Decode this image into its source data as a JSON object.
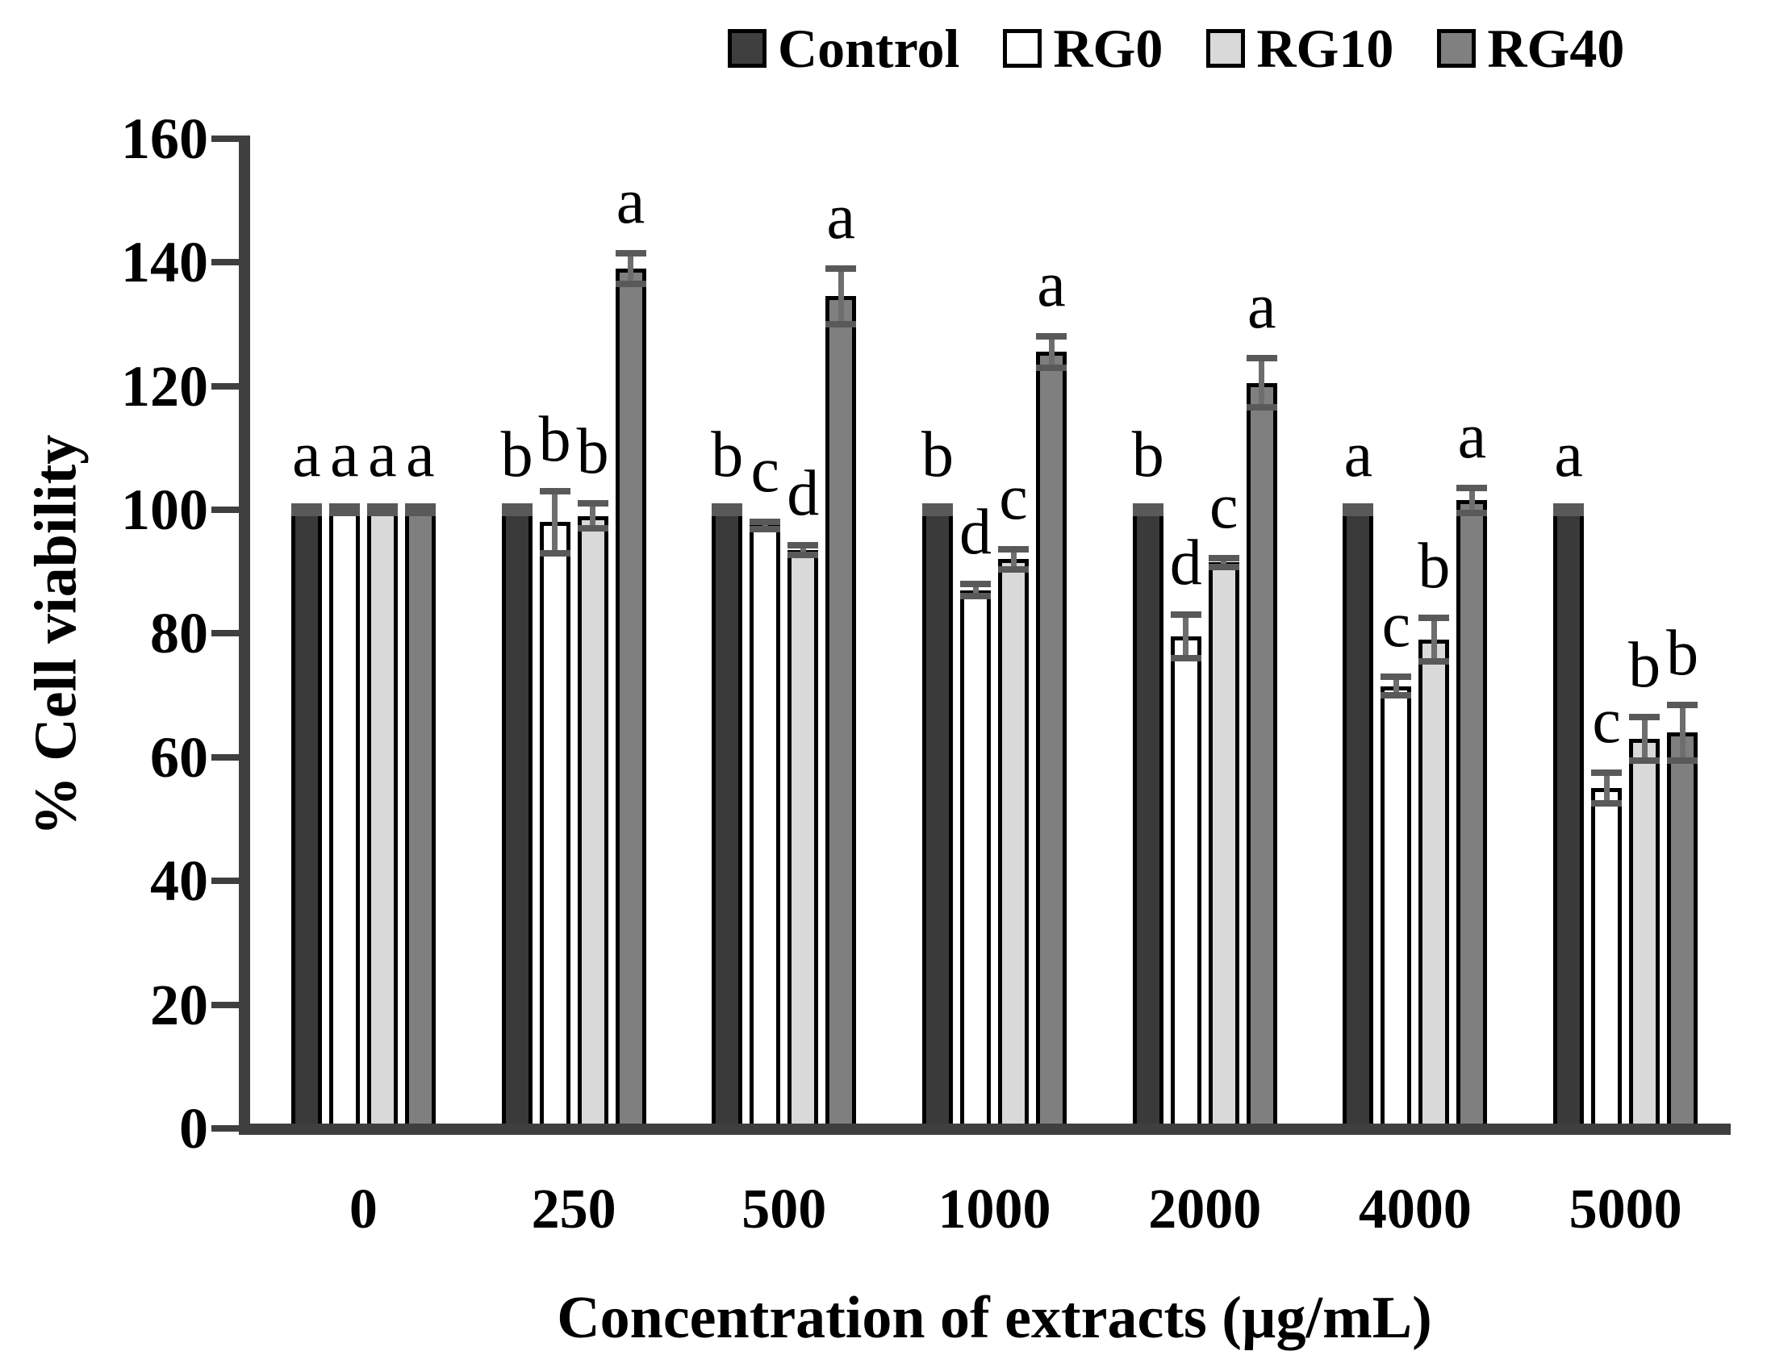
{
  "legend": {
    "items": [
      {
        "label": "Control",
        "color": "#3f3f3f"
      },
      {
        "label": "RG0",
        "color": "#ffffff"
      },
      {
        "label": "RG10",
        "color": "#d9d9d9"
      },
      {
        "label": "RG40",
        "color": "#808080"
      }
    ]
  },
  "chart_data": {
    "type": "bar",
    "title": "",
    "xlabel": "Concentration of extracts (µg/mL)",
    "ylabel": "% Cell viability",
    "ylim": [
      0,
      160
    ],
    "yticks": [
      0,
      20,
      40,
      60,
      80,
      100,
      120,
      140,
      160
    ],
    "grid": "off",
    "legend_position": "top",
    "categories": [
      "0",
      "250",
      "500",
      "1000",
      "2000",
      "4000",
      "5000"
    ],
    "series": [
      {
        "name": "Control",
        "color": "#3a3a3a",
        "values": [
          100,
          100,
          100,
          100,
          100,
          100,
          100
        ],
        "errors": [
          0.5,
          0.5,
          0.5,
          0.5,
          0.5,
          0.5,
          0.5
        ],
        "letters": [
          "a",
          "b",
          "b",
          "b",
          "b",
          "a",
          "a"
        ]
      },
      {
        "name": "RG0",
        "color": "#ffffff",
        "values": [
          100,
          98,
          97.5,
          87,
          79.5,
          71.5,
          55
        ],
        "errors": [
          0.5,
          5,
          0.6,
          1,
          3.5,
          1.5,
          2.5
        ],
        "letters": [
          "a",
          "b",
          "c",
          "d",
          "d",
          "c",
          "c"
        ]
      },
      {
        "name": "RG10",
        "color": "#d9d9d9",
        "values": [
          100,
          99,
          93.5,
          92,
          91.5,
          79,
          63
        ],
        "errors": [
          0.5,
          2,
          0.8,
          1.6,
          0.7,
          3.5,
          3.5
        ],
        "letters": [
          "a",
          "b",
          "d",
          "c",
          "c",
          "b",
          "b"
        ]
      },
      {
        "name": "RG40",
        "color": "#7f7f7f",
        "values": [
          100,
          139,
          134.5,
          125.5,
          120.5,
          101.5,
          64
        ],
        "errors": [
          0.5,
          2.5,
          4.5,
          2.5,
          4,
          2,
          4.5
        ],
        "letters": [
          "a",
          "a",
          "a",
          "a",
          "a",
          "a",
          "b"
        ]
      }
    ],
    "error_bar_colors": {
      "cap": "#595959",
      "whisker": "#6e6e6e"
    },
    "axis_color": "#3f3f3f"
  }
}
